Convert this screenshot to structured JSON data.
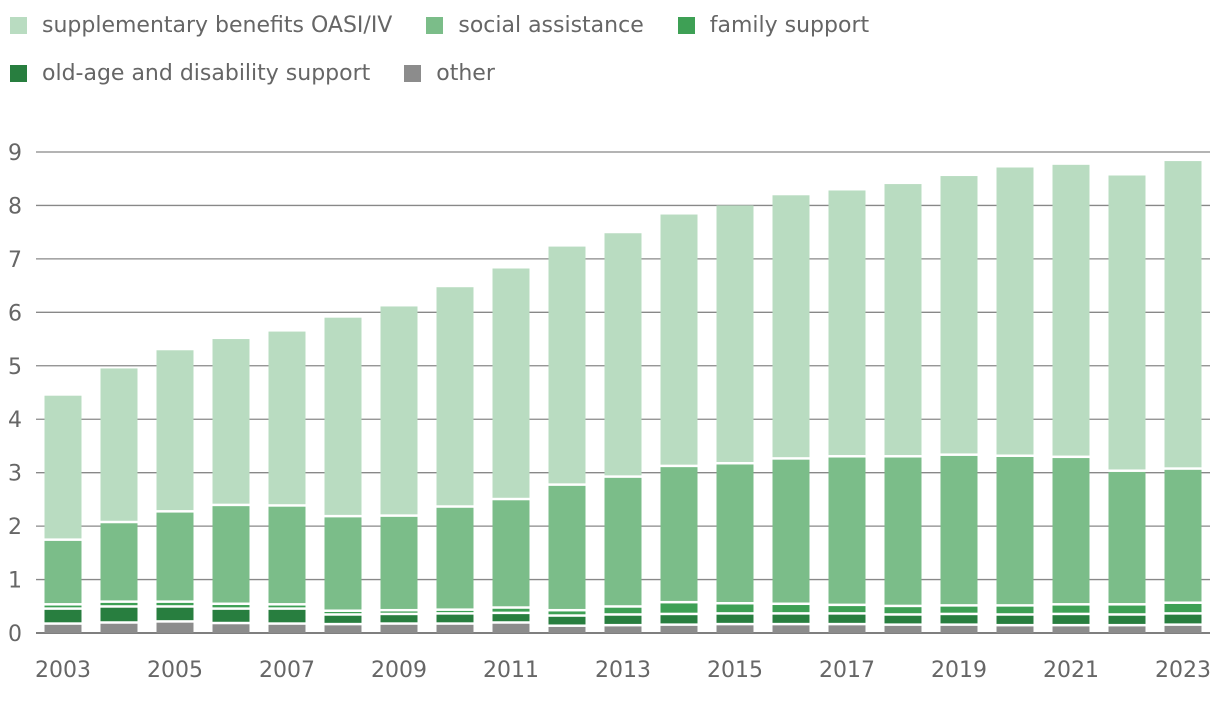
{
  "chart_data": {
    "type": "bar",
    "stacked": true,
    "title": "",
    "xlabel": "",
    "ylabel": "",
    "ylim": [
      0,
      9
    ],
    "yticks": [
      0,
      1,
      2,
      3,
      4,
      5,
      6,
      7,
      8,
      9
    ],
    "grid": true,
    "legend_position": "top-left",
    "categories": [
      "2003",
      "2004",
      "2005",
      "2006",
      "2007",
      "2008",
      "2009",
      "2010",
      "2011",
      "2012",
      "2013",
      "2014",
      "2015",
      "2016",
      "2017",
      "2018",
      "2019",
      "2020",
      "2021",
      "2022",
      "2023"
    ],
    "xtick_labels": [
      "2003",
      "2005",
      "2007",
      "2009",
      "2011",
      "2013",
      "2015",
      "2017",
      "2019",
      "2021",
      "2023"
    ],
    "series": [
      {
        "name": "other",
        "color": "#8c8c8c",
        "values": [
          0.2,
          0.22,
          0.24,
          0.21,
          0.2,
          0.19,
          0.2,
          0.2,
          0.22,
          0.16,
          0.17,
          0.18,
          0.19,
          0.19,
          0.19,
          0.18,
          0.18,
          0.17,
          0.17,
          0.17,
          0.18
        ]
      },
      {
        "name": "old-age and disability support",
        "color": "#287e3f",
        "values": [
          0.28,
          0.3,
          0.28,
          0.27,
          0.28,
          0.18,
          0.18,
          0.19,
          0.18,
          0.19,
          0.2,
          0.2,
          0.2,
          0.2,
          0.2,
          0.19,
          0.2,
          0.2,
          0.21,
          0.2,
          0.21
        ]
      },
      {
        "name": "family support",
        "color": "#3ea055",
        "values": [
          0.08,
          0.09,
          0.09,
          0.09,
          0.08,
          0.07,
          0.07,
          0.07,
          0.1,
          0.1,
          0.15,
          0.22,
          0.19,
          0.18,
          0.16,
          0.16,
          0.16,
          0.17,
          0.18,
          0.19,
          0.2
        ]
      },
      {
        "name": "social assistance",
        "color": "#7bbd89",
        "values": [
          1.21,
          1.49,
          1.69,
          1.85,
          1.85,
          1.77,
          1.77,
          1.93,
          2.03,
          2.35,
          2.43,
          2.55,
          2.62,
          2.72,
          2.78,
          2.8,
          2.82,
          2.8,
          2.76,
          2.5,
          2.51
        ]
      },
      {
        "name": "supplementary benefits OASI/IV",
        "color": "#b9dcc1",
        "values": [
          2.67,
          2.85,
          2.99,
          3.08,
          3.23,
          3.69,
          3.89,
          4.08,
          4.29,
          4.43,
          4.53,
          4.68,
          4.8,
          4.9,
          4.95,
          5.07,
          5.19,
          5.37,
          5.44,
          5.5,
          5.73
        ]
      }
    ]
  },
  "legend": {
    "row1": [
      {
        "label": "supplementary benefits OASI/IV",
        "color": "#b9dcc1"
      },
      {
        "label": "social assistance",
        "color": "#7bbd89"
      },
      {
        "label": "family support",
        "color": "#3ea055"
      }
    ],
    "row2": [
      {
        "label": "old-age and disability support",
        "color": "#287e3f"
      },
      {
        "label": "other",
        "color": "#8c8c8c"
      }
    ]
  }
}
